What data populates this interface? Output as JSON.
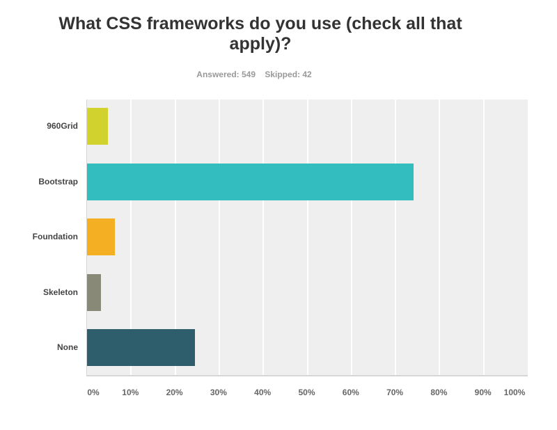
{
  "header": {
    "title": "What CSS frameworks do you use (check all that apply)?",
    "answered": "Answered: 549",
    "skipped": "Skipped: 42"
  },
  "chart_data": {
    "type": "bar",
    "orientation": "horizontal",
    "title": "What CSS frameworks do you use (check all that apply)?",
    "subtitle": "Answered: 549    Skipped: 42",
    "categories": [
      "960Grid",
      "Bootstrap",
      "Foundation",
      "Skeleton",
      "None"
    ],
    "values": [
      4.8,
      74.1,
      6.3,
      3.2,
      24.5
    ],
    "colors": [
      "#d1d22e",
      "#33bdbe",
      "#f5af22",
      "#888977",
      "#2e5e6b"
    ],
    "xlabel": "",
    "ylabel": "",
    "xlim": [
      0,
      100
    ],
    "x_ticks": [
      "0%",
      "10%",
      "20%",
      "30%",
      "40%",
      "50%",
      "60%",
      "70%",
      "80%",
      "90%",
      "100%"
    ],
    "grid": true,
    "legend": "none"
  }
}
